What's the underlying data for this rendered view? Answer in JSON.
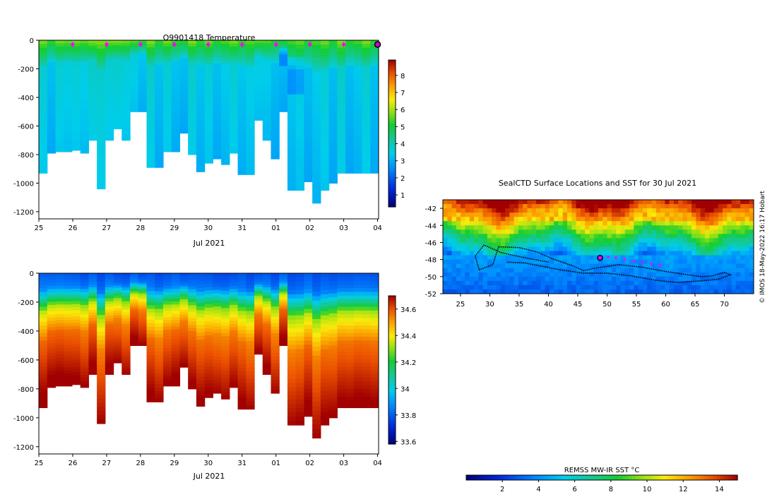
{
  "credit": "© IMOS 18-May-2022 16:17 Hobart",
  "chart_data": [
    {
      "id": "temperature",
      "type": "heatmap",
      "title": "Q9901418  Temperature",
      "xlabel": "Jul 2021",
      "ylabel": "",
      "x_tick_labels": [
        "25",
        "26",
        "27",
        "28",
        "29",
        "30",
        "31",
        "01",
        "02",
        "03",
        "04"
      ],
      "x_range_days": [
        0,
        10.03
      ],
      "ylim": [
        -1250,
        0
      ],
      "y_ticks": [
        0,
        -200,
        -400,
        -600,
        -800,
        -1000,
        -1200
      ],
      "colorbar": {
        "min": 0.3,
        "max": 8.9,
        "ticks": [
          1,
          2,
          3,
          4,
          5,
          6,
          7,
          8
        ],
        "tick_labels": [
          "1",
          "2",
          "3",
          "4",
          "5",
          "6",
          "7",
          "8"
        ]
      },
      "surface_markers_days": [
        1,
        2,
        3,
        4,
        5,
        6,
        7,
        8,
        9
      ],
      "current_marker_day": 10,
      "profile_depth_m": [
        930,
        790,
        780,
        780,
        770,
        790,
        700,
        1040,
        700,
        620,
        700,
        500,
        500,
        890,
        890,
        780,
        780,
        650,
        800,
        920,
        860,
        830,
        870,
        790,
        940,
        940,
        560,
        700,
        830,
        500,
        1050,
        1050,
        990,
        1140,
        1050,
        1000,
        930,
        930,
        930,
        930,
        930
      ]
    },
    {
      "id": "salinity",
      "type": "heatmap",
      "title": "",
      "xlabel": "Jul 2021",
      "ylabel": "",
      "x_tick_labels": [
        "25",
        "26",
        "27",
        "28",
        "29",
        "30",
        "31",
        "01",
        "02",
        "03",
        "04"
      ],
      "x_range_days": [
        0,
        10.03
      ],
      "ylim": [
        -1250,
        0
      ],
      "y_ticks": [
        0,
        -200,
        -400,
        -600,
        -800,
        -1000,
        -1200
      ],
      "colorbar": {
        "min": 33.58,
        "max": 34.7,
        "ticks": [
          33.6,
          33.8,
          34,
          34.2,
          34.4,
          34.6
        ],
        "tick_labels": [
          "33.6",
          "33.8",
          "34",
          "34.2",
          "34.4",
          "34.6"
        ]
      },
      "profile_depth_m": [
        930,
        790,
        780,
        780,
        770,
        790,
        700,
        1040,
        700,
        620,
        700,
        500,
        500,
        890,
        890,
        780,
        780,
        650,
        800,
        920,
        860,
        830,
        870,
        790,
        940,
        940,
        560,
        700,
        830,
        500,
        1050,
        1050,
        990,
        1140,
        1050,
        1000,
        930,
        930,
        930,
        930,
        930
      ]
    },
    {
      "id": "sst-map",
      "type": "heatmap",
      "title": "SealCTD Surface Locations and SST for 30 Jul 2021",
      "xlabel": "",
      "ylabel": "",
      "xlim": [
        22,
        75
      ],
      "ylim": [
        -52,
        -41
      ],
      "x_ticks": [
        25,
        30,
        35,
        40,
        45,
        50,
        55,
        60,
        65,
        70
      ],
      "x_tick_labels": [
        "25",
        "30",
        "35",
        "40",
        "45",
        "50",
        "55",
        "60",
        "65",
        "70"
      ],
      "y_ticks": [
        -42,
        -44,
        -46,
        -48,
        -50,
        -52
      ],
      "y_tick_labels": [
        "-42",
        "-44",
        "-46",
        "-48",
        "-50",
        "-52"
      ],
      "colorbar": {
        "label": "REMSS MW-IR SST °C",
        "min": 0,
        "max": 15,
        "ticks": [
          2,
          4,
          6,
          8,
          10,
          12,
          14
        ],
        "tick_labels": [
          "2",
          "4",
          "6",
          "8",
          "10",
          "12",
          "14"
        ]
      },
      "recent_positions": [
        [
          50.2,
          -47.7
        ],
        [
          51.5,
          -47.8
        ],
        [
          53,
          -48
        ],
        [
          54.6,
          -48.2
        ],
        [
          56,
          -48.3
        ],
        [
          57.5,
          -48.5
        ],
        [
          59,
          -48.7
        ]
      ],
      "current_position": [
        48.8,
        -47.8
      ],
      "track": [
        [
          40,
          -48.3
        ],
        [
          36,
          -47.8
        ],
        [
          32,
          -47.2
        ],
        [
          29,
          -46.3
        ],
        [
          27.5,
          -47.6
        ],
        [
          28.2,
          -49.2
        ],
        [
          30.5,
          -48.6
        ],
        [
          31.5,
          -46.5
        ],
        [
          35,
          -46.6
        ],
        [
          38,
          -47.1
        ],
        [
          41,
          -48
        ],
        [
          44,
          -48.7
        ],
        [
          46,
          -49.3
        ],
        [
          48,
          -49
        ],
        [
          52,
          -48.6
        ],
        [
          56,
          -48.9
        ],
        [
          60,
          -49.4
        ],
        [
          63,
          -49.7
        ],
        [
          66,
          -50
        ],
        [
          68,
          -49.9
        ],
        [
          70,
          -49.5
        ],
        [
          71,
          -49.8
        ],
        [
          69,
          -50.3
        ],
        [
          66,
          -50.5
        ],
        [
          62,
          -50.7
        ],
        [
          58,
          -50.4
        ],
        [
          54,
          -49.9
        ],
        [
          50,
          -49.6
        ],
        [
          46,
          -49.6
        ],
        [
          42,
          -49.2
        ],
        [
          39,
          -48.8
        ],
        [
          36,
          -48.4
        ],
        [
          33,
          -48.3
        ]
      ]
    }
  ]
}
